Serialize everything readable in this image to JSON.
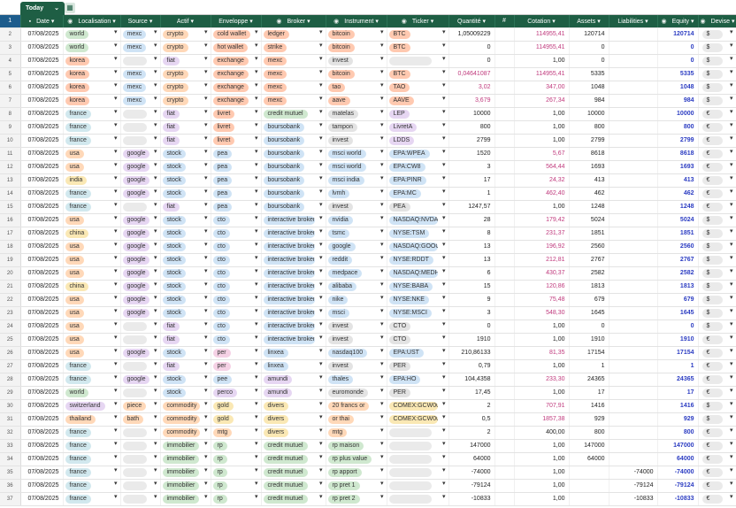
{
  "tab": {
    "label": "Today"
  },
  "headers": [
    "",
    "Date",
    "Localisation",
    "Source",
    "Actif",
    "Enveloppe",
    "Broker",
    "Instrument",
    "Ticker",
    "Quantité",
    "#",
    "Cotation",
    "Assets",
    "Liabilities",
    "Equity",
    "Devise"
  ],
  "rows": [
    [
      "2",
      "07/08/2025",
      "world",
      "mexc",
      "crypto",
      "cold wallet",
      "ledger",
      "bitcoin",
      "BTC",
      "1,05009229",
      "",
      "114955,41",
      "120714",
      "",
      "120714",
      "$"
    ],
    [
      "3",
      "07/08/2025",
      "world",
      "mexc",
      "crypto",
      "hot wallet",
      "strike",
      "bitcoin",
      "BTC",
      "0",
      "",
      "114955,41",
      "0",
      "",
      "0",
      "$"
    ],
    [
      "4",
      "07/08/2025",
      "korea",
      "",
      "fiat",
      "exchange",
      "mexc",
      "invest",
      "",
      "0",
      "",
      "1,00",
      "0",
      "",
      "0",
      "$"
    ],
    [
      "5",
      "07/08/2025",
      "korea",
      "mexc",
      "crypto",
      "exchange",
      "mexc",
      "bitcoin",
      "BTC",
      "0,04641087",
      "",
      "114955,41",
      "5335",
      "",
      "5335",
      "$"
    ],
    [
      "6",
      "07/08/2025",
      "korea",
      "mexc",
      "crypto",
      "exchange",
      "mexc",
      "tao",
      "TAO",
      "3,02",
      "",
      "347,00",
      "1048",
      "",
      "1048",
      "$"
    ],
    [
      "7",
      "07/08/2025",
      "korea",
      "mexc",
      "crypto",
      "exchange",
      "mexc",
      "aave",
      "AAVE",
      "3,679",
      "",
      "267,34",
      "984",
      "",
      "984",
      "$"
    ],
    [
      "8",
      "07/08/2025",
      "france",
      "",
      "fiat",
      "livret",
      "credit mutuel",
      "matelas",
      "LEP",
      "10000",
      "",
      "1,00",
      "10000",
      "",
      "10000",
      "€"
    ],
    [
      "9",
      "07/08/2025",
      "france",
      "",
      "fiat",
      "livret",
      "boursobank",
      "tampon",
      "LivretA",
      "800",
      "",
      "1,00",
      "800",
      "",
      "800",
      "€"
    ],
    [
      "10",
      "07/08/2025",
      "france",
      "",
      "fiat",
      "livret",
      "boursobank",
      "invest",
      "LDDS",
      "2799",
      "",
      "1,00",
      "2799",
      "",
      "2799",
      "€"
    ],
    [
      "11",
      "07/08/2025",
      "usa",
      "google",
      "stock",
      "pea",
      "boursobank",
      "msci world",
      "EPA:WPEA",
      "1520",
      "",
      "5,67",
      "8618",
      "",
      "8618",
      "€"
    ],
    [
      "12",
      "07/08/2025",
      "usa",
      "google",
      "stock",
      "pea",
      "boursobank",
      "msci world",
      "EPA:CW8",
      "3",
      "",
      "564,44",
      "1693",
      "",
      "1693",
      "€"
    ],
    [
      "13",
      "07/08/2025",
      "india",
      "google",
      "stock",
      "pea",
      "boursobank",
      "msci india",
      "EPA:PINR",
      "17",
      "",
      "24,32",
      "413",
      "",
      "413",
      "€"
    ],
    [
      "14",
      "07/08/2025",
      "france",
      "google",
      "stock",
      "pea",
      "boursobank",
      "lvmh",
      "EPA:MC",
      "1",
      "",
      "462,40",
      "462",
      "",
      "462",
      "€"
    ],
    [
      "15",
      "07/08/2025",
      "france",
      "",
      "fiat",
      "pea",
      "boursobank",
      "invest",
      "PEA",
      "1247,57",
      "",
      "1,00",
      "1248",
      "",
      "1248",
      "€"
    ],
    [
      "16",
      "07/08/2025",
      "usa",
      "google",
      "stock",
      "cto",
      "interactive broker",
      "nvidia",
      "NASDAQ:NVDA",
      "28",
      "",
      "179,42",
      "5024",
      "",
      "5024",
      "$"
    ],
    [
      "17",
      "07/08/2025",
      "china",
      "google",
      "stock",
      "cto",
      "interactive broker",
      "tsmc",
      "NYSE:TSM",
      "8",
      "",
      "231,37",
      "1851",
      "",
      "1851",
      "$"
    ],
    [
      "18",
      "07/08/2025",
      "usa",
      "google",
      "stock",
      "cto",
      "interactive broker",
      "google",
      "NASDAQ:GOOG",
      "13",
      "",
      "196,92",
      "2560",
      "",
      "2560",
      "$"
    ],
    [
      "19",
      "07/08/2025",
      "usa",
      "google",
      "stock",
      "cto",
      "interactive broker",
      "reddit",
      "NYSE:RDDT",
      "13",
      "",
      "212,81",
      "2767",
      "",
      "2767",
      "$"
    ],
    [
      "20",
      "07/08/2025",
      "usa",
      "google",
      "stock",
      "cto",
      "interactive broker",
      "medpace",
      "NASDAQ:MEDP",
      "6",
      "",
      "430,37",
      "2582",
      "",
      "2582",
      "$"
    ],
    [
      "21",
      "07/08/2025",
      "china",
      "google",
      "stock",
      "cto",
      "interactive broker",
      "alibaba",
      "NYSE:BABA",
      "15",
      "",
      "120,86",
      "1813",
      "",
      "1813",
      "$"
    ],
    [
      "22",
      "07/08/2025",
      "usa",
      "google",
      "stock",
      "cto",
      "interactive broker",
      "nike",
      "NYSE:NKE",
      "9",
      "",
      "75,48",
      "679",
      "",
      "679",
      "$"
    ],
    [
      "23",
      "07/08/2025",
      "usa",
      "google",
      "stock",
      "cto",
      "interactive broker",
      "msci",
      "NYSE:MSCI",
      "3",
      "",
      "548,30",
      "1645",
      "",
      "1645",
      "$"
    ],
    [
      "24",
      "07/08/2025",
      "usa",
      "",
      "fiat",
      "cto",
      "interactive broker",
      "invest",
      "CTO",
      "0",
      "",
      "1,00",
      "0",
      "",
      "0",
      "$"
    ],
    [
      "25",
      "07/08/2025",
      "usa",
      "",
      "fiat",
      "cto",
      "interactive broker",
      "invest",
      "CTO",
      "1910",
      "",
      "1,00",
      "1910",
      "",
      "1910",
      "€"
    ],
    [
      "26",
      "07/08/2025",
      "usa",
      "google",
      "stock",
      "per",
      "linxea",
      "nasdaq100",
      "EPA:UST",
      "210,86133",
      "",
      "81,35",
      "17154",
      "",
      "17154",
      "€"
    ],
    [
      "27",
      "07/08/2025",
      "france",
      "",
      "fiat",
      "per",
      "linxea",
      "invest",
      "PER",
      "0,79",
      "",
      "1,00",
      "1",
      "",
      "1",
      "€"
    ],
    [
      "28",
      "07/08/2025",
      "france",
      "google",
      "stock",
      "pee",
      "amundi",
      "thales",
      "EPA:HO",
      "104,4358",
      "",
      "233,30",
      "24365",
      "",
      "24365",
      "€"
    ],
    [
      "29",
      "07/08/2025",
      "world",
      "",
      "stock",
      "perco",
      "amundi",
      "euromonde",
      "PER",
      "17,45",
      "",
      "1,00",
      "17",
      "",
      "17",
      "€"
    ],
    [
      "30",
      "07/08/2025",
      "switzerland",
      "piece",
      "commodity",
      "gold",
      "divers",
      "20 francs or",
      "COMEX:GCW00",
      "2",
      "",
      "707,91",
      "1416",
      "",
      "1416",
      "$"
    ],
    [
      "31",
      "07/08/2025",
      "thailand",
      "bath",
      "commodity",
      "gold",
      "divers",
      "or thai",
      "COMEX:GCW00",
      "0,5",
      "",
      "1857,38",
      "929",
      "",
      "929",
      "$"
    ],
    [
      "32",
      "07/08/2025",
      "france",
      "",
      "commodity",
      "mtg",
      "divers",
      "mtg",
      "",
      "2",
      "",
      "400,00",
      "800",
      "",
      "800",
      "€"
    ],
    [
      "33",
      "07/08/2025",
      "france",
      "",
      "immobilier",
      "rp",
      "credit mutuel",
      "rp maison",
      "",
      "147000",
      "",
      "1,00",
      "147000",
      "",
      "147000",
      "€"
    ],
    [
      "34",
      "07/08/2025",
      "france",
      "",
      "immobilier",
      "rp",
      "credit mutuel",
      "rp plus value",
      "",
      "64000",
      "",
      "1,00",
      "64000",
      "",
      "64000",
      "€"
    ],
    [
      "35",
      "07/08/2025",
      "france",
      "",
      "immobilier",
      "rp",
      "credit mutuel",
      "rp apport",
      "",
      "-74000",
      "",
      "1,00",
      "",
      "-74000",
      "-74000",
      "€"
    ],
    [
      "36",
      "07/08/2025",
      "france",
      "",
      "immobilier",
      "rp",
      "credit mutuel",
      "rp pret 1",
      "",
      "-79124",
      "",
      "1,00",
      "",
      "-79124",
      "-79124",
      "€"
    ],
    [
      "37",
      "07/08/2025",
      "france",
      "",
      "immobilier",
      "rp",
      "credit mutuel",
      "rp pret 2",
      "",
      "-10833",
      "",
      "1,00",
      "",
      "-10833",
      "-10833",
      "€"
    ]
  ],
  "colors": {
    "header": "#1e5e44",
    "pink": "#c03a7d",
    "blue": "#2b3cc2"
  }
}
